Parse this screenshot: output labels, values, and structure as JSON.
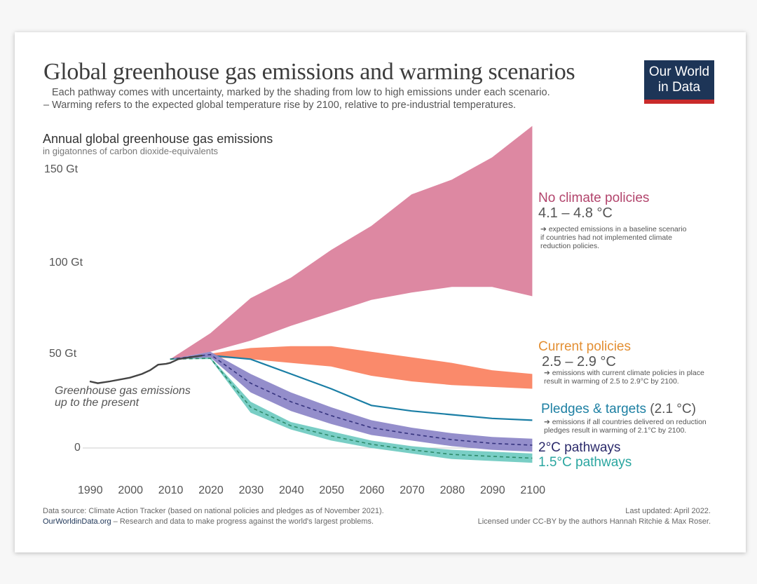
{
  "header": {
    "title": "Global greenhouse gas emissions and warming scenarios",
    "subtitle1": "Each pathway comes with uncertainty, marked by the shading from low to high emissions under each scenario.",
    "subtitle2": "– Warming refers to the expected global temperature rise by 2100, relative to pre-industrial temperatures.",
    "logo_line1": "Our World",
    "logo_line2": "in Data"
  },
  "chart_data": {
    "type": "area",
    "title": "Annual global greenhouse gas emissions",
    "ylabel": "in gigatonnes of carbon dioxide-equivalents",
    "ylim": [
      -10,
      175
    ],
    "xlim": [
      1990,
      2100
    ],
    "yticks": [
      {
        "v": 0,
        "label": "0"
      },
      {
        "v": 50,
        "label": "50 Gt"
      },
      {
        "v": 100,
        "label": "100 Gt"
      },
      {
        "v": 150,
        "label": "150 Gt"
      }
    ],
    "xticks": [
      "1990",
      "2000",
      "2010",
      "2020",
      "2030",
      "2040",
      "2050",
      "2060",
      "2070",
      "2080",
      "2090",
      "2100"
    ],
    "historical": {
      "label": "Greenhouse gas emissions up to the present",
      "x": [
        1990,
        1992,
        1995,
        2000,
        2003,
        2005,
        2007,
        2009,
        2010,
        2012,
        2015,
        2018
      ],
      "y": [
        36,
        35,
        36,
        38,
        40,
        42,
        45,
        45.5,
        46,
        48,
        49,
        50
      ]
    },
    "scenario_x": [
      2010,
      2020,
      2030,
      2040,
      2050,
      2060,
      2070,
      2080,
      2090,
      2100
    ],
    "series": [
      {
        "name": "No climate policies",
        "temp": "4.1 – 4.8 °C",
        "note": "➔ expected emissions in a baseline scenario if countries had not implemented climate reduction policies.",
        "color": "#dd88a2",
        "text_color": "#b2446c",
        "upper": [
          48,
          62,
          81,
          92,
          107,
          120,
          137,
          145,
          157,
          174
        ],
        "lower": [
          48,
          52,
          58,
          66,
          73,
          80,
          84,
          87,
          87,
          82
        ]
      },
      {
        "name": "Current policies",
        "temp": "2.5 – 2.9 °C",
        "note": "➔ emissions with current climate policies in place result in warming of 2.5 to 2.9°C by 2100.",
        "color": "#fa8a6b",
        "text_color": "#e38f33",
        "upper": [
          48,
          51,
          54,
          55,
          55,
          52,
          49,
          46,
          42,
          40
        ],
        "lower": [
          48,
          49,
          48,
          46,
          44,
          39,
          36,
          34,
          33,
          32
        ]
      },
      {
        "name": "Pledges & targets",
        "temp": "(2.1 °C)",
        "note": "➔ emissions if all countries delivered on reduction pledges result in warming of 2.1°C by 2100.",
        "color": "#1a7ea5",
        "text_color": "#1e80a3",
        "line": [
          48,
          50,
          48,
          40,
          32,
          23,
          20,
          18,
          16,
          15
        ]
      },
      {
        "name": "2°C pathways",
        "color": "#8e88c8",
        "dash_color": "#35337e",
        "text_color": "#2b2a6b",
        "upper": [
          48,
          52,
          40,
          30,
          22,
          15,
          11,
          8,
          6,
          5
        ],
        "lower": [
          48,
          49,
          30,
          20,
          13,
          7,
          4,
          1,
          -1,
          -2
        ]
      },
      {
        "name": "1.5°C pathways",
        "color": "#72cbc2",
        "dash_color": "#2d8a6a",
        "text_color": "#2aa6a0",
        "upper": [
          48,
          49,
          25,
          14,
          9,
          4,
          1,
          -1,
          -2,
          -3
        ],
        "lower": [
          48,
          48,
          19,
          10,
          4,
          0,
          -3,
          -6,
          -7,
          -8
        ]
      }
    ]
  },
  "footer": {
    "source": "Data source: Climate Action Tracker (based on national policies and pledges as of November 2021).",
    "site": "OurWorldinData.org",
    "tagline": " – Research and data to make progress against the world's largest problems.",
    "updated": "Last updated: April 2022.",
    "license": "Licensed under CC-BY by the authors Hannah Ritchie & Max Roser."
  }
}
